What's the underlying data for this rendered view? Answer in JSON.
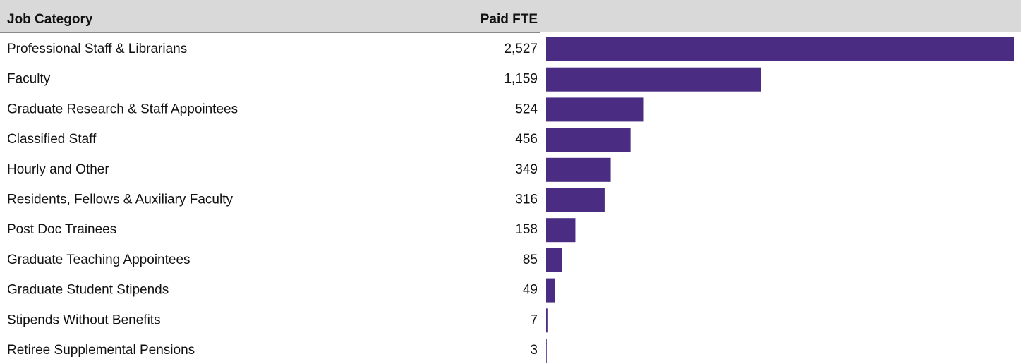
{
  "chart_data": {
    "type": "bar",
    "orientation": "horizontal",
    "headers": [
      "Job Category",
      "Paid FTE"
    ],
    "categories": [
      "Professional Staff & Librarians",
      "Faculty",
      "Graduate Research & Staff Appointees",
      "Classified Staff",
      "Hourly and Other",
      "Residents, Fellows & Auxiliary Faculty",
      "Post Doc Trainees",
      "Graduate Teaching Appointees",
      "Graduate Student Stipends",
      "Stipends Without Benefits",
      "Retiree Supplemental Pensions"
    ],
    "values": [
      2527,
      1159,
      524,
      456,
      349,
      316,
      158,
      85,
      49,
      7,
      3
    ],
    "value_labels": [
      "2,527",
      "1,159",
      "524",
      "456",
      "349",
      "316",
      "158",
      "85",
      "49",
      "7",
      "3"
    ],
    "color": "#4b2c83"
  }
}
